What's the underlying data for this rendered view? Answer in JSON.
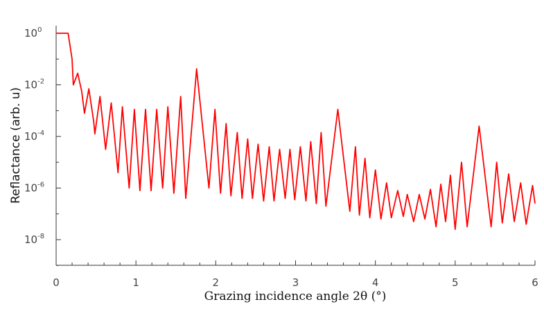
{
  "chart_data": {
    "type": "line",
    "title": "",
    "xlabel": "Grazing incidence angle 2θ (°)",
    "ylabel": "Reflactance (arb. u)",
    "xlim": [
      0,
      6
    ],
    "ylim_log10": [
      -9,
      0.3
    ],
    "yscale": "log",
    "grid": false,
    "x_ticks": [
      "0",
      "1",
      "2",
      "3",
      "4",
      "5",
      "6"
    ],
    "x_tick_values": [
      0,
      1,
      2,
      3,
      4,
      5,
      6
    ],
    "y_ticks": [
      {
        "base": "10",
        "exp": "0",
        "value": 0
      },
      {
        "base": "10",
        "exp": "-2",
        "value": -2
      },
      {
        "base": "10",
        "exp": "-4",
        "value": -4
      },
      {
        "base": "10",
        "exp": "-6",
        "value": -6
      },
      {
        "base": "10",
        "exp": "-8",
        "value": -8
      }
    ],
    "series": [
      {
        "name": "reflectance",
        "color": "#ff0000",
        "points_log10": [
          [
            0.0,
            0.0
          ],
          [
            0.15,
            0.0
          ],
          [
            0.2,
            -1.0
          ],
          [
            0.215,
            -2.0
          ],
          [
            0.27,
            -1.55
          ],
          [
            0.32,
            -2.25
          ],
          [
            0.355,
            -3.1
          ],
          [
            0.41,
            -2.15
          ],
          [
            0.47,
            -3.4
          ],
          [
            0.485,
            -3.9
          ],
          [
            0.55,
            -2.45
          ],
          [
            0.62,
            -4.5
          ],
          [
            0.69,
            -2.7
          ],
          [
            0.775,
            -5.4
          ],
          [
            0.83,
            -2.85
          ],
          [
            0.915,
            -6.0
          ],
          [
            0.98,
            -2.95
          ],
          [
            1.05,
            -6.1
          ],
          [
            1.12,
            -2.95
          ],
          [
            1.19,
            -6.1
          ],
          [
            1.26,
            -2.95
          ],
          [
            1.335,
            -6.0
          ],
          [
            1.4,
            -2.85
          ],
          [
            1.475,
            -6.2
          ],
          [
            1.56,
            -2.45
          ],
          [
            1.625,
            -6.4
          ],
          [
            1.76,
            -1.38
          ],
          [
            1.915,
            -6.0
          ],
          [
            1.99,
            -2.95
          ],
          [
            2.06,
            -6.2
          ],
          [
            2.13,
            -3.5
          ],
          [
            2.19,
            -6.3
          ],
          [
            2.27,
            -3.85
          ],
          [
            2.33,
            -6.4
          ],
          [
            2.4,
            -4.1
          ],
          [
            2.46,
            -6.4
          ],
          [
            2.53,
            -4.3
          ],
          [
            2.6,
            -6.5
          ],
          [
            2.67,
            -4.4
          ],
          [
            2.73,
            -6.5
          ],
          [
            2.8,
            -4.5
          ],
          [
            2.87,
            -6.4
          ],
          [
            2.93,
            -4.5
          ],
          [
            2.99,
            -6.45
          ],
          [
            3.06,
            -4.4
          ],
          [
            3.13,
            -6.5
          ],
          [
            3.19,
            -4.2
          ],
          [
            3.26,
            -6.6
          ],
          [
            3.32,
            -3.85
          ],
          [
            3.38,
            -6.7
          ],
          [
            3.53,
            -2.95
          ],
          [
            3.68,
            -6.9
          ],
          [
            3.75,
            -4.4
          ],
          [
            3.8,
            -7.05
          ],
          [
            3.87,
            -4.85
          ],
          [
            3.93,
            -7.15
          ],
          [
            4.0,
            -5.3
          ],
          [
            4.07,
            -7.2
          ],
          [
            4.14,
            -5.8
          ],
          [
            4.2,
            -7.15
          ],
          [
            4.28,
            -6.1
          ],
          [
            4.35,
            -7.1
          ],
          [
            4.4,
            -6.25
          ],
          [
            4.48,
            -7.3
          ],
          [
            4.55,
            -6.25
          ],
          [
            4.62,
            -7.2
          ],
          [
            4.69,
            -6.05
          ],
          [
            4.76,
            -7.5
          ],
          [
            4.82,
            -5.85
          ],
          [
            4.88,
            -7.3
          ],
          [
            4.94,
            -5.5
          ],
          [
            5.0,
            -7.6
          ],
          [
            5.08,
            -5.0
          ],
          [
            5.15,
            -7.5
          ],
          [
            5.3,
            -3.6
          ],
          [
            5.45,
            -7.5
          ],
          [
            5.52,
            -5.0
          ],
          [
            5.59,
            -7.35
          ],
          [
            5.67,
            -5.45
          ],
          [
            5.74,
            -7.3
          ],
          [
            5.82,
            -5.8
          ],
          [
            5.89,
            -7.4
          ],
          [
            5.97,
            -5.9
          ],
          [
            6.0,
            -6.6
          ]
        ]
      }
    ]
  }
}
